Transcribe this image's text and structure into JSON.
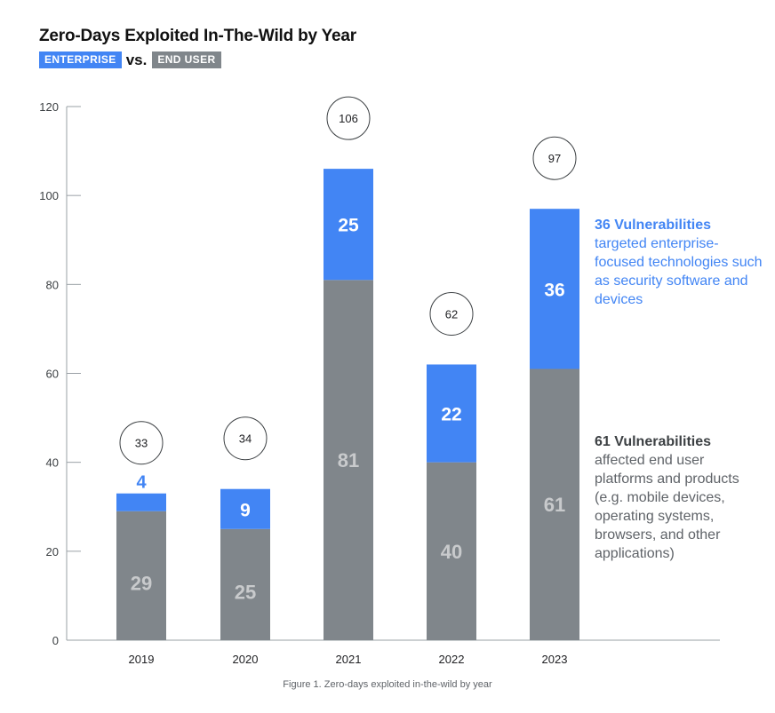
{
  "chart_data": {
    "type": "bar",
    "stacked": true,
    "title": "Zero-Days Exploited In-The-Wild by Year",
    "categories": [
      "2019",
      "2020",
      "2021",
      "2022",
      "2023"
    ],
    "series": [
      {
        "name": "END USER",
        "color": "#80868b",
        "values": [
          29,
          25,
          81,
          40,
          61
        ]
      },
      {
        "name": "ENTERPRISE",
        "color": "#4285f4",
        "values": [
          4,
          9,
          25,
          22,
          36
        ]
      }
    ],
    "totals": [
      33,
      34,
      106,
      62,
      97
    ],
    "ylim": [
      0,
      120
    ],
    "yticks": [
      0,
      20,
      40,
      60,
      80,
      100,
      120
    ],
    "grid": false
  },
  "legend": {
    "enterprise_label": "ENTERPRISE",
    "vs_label": "vs.",
    "end_user_label": "END USER"
  },
  "notes": {
    "enterprise_head": "36 Vulnerabilities",
    "enterprise_text": "targeted enterprise-focused technologies such as security software and devices",
    "end_user_head": "61 Vulnerabilities",
    "end_user_text": "affected end user platforms and products (e.g. mobile devices, operating systems, browsers, and other applications)"
  },
  "caption": "Figure 1. Zero-days exploited in-the-wild by year"
}
